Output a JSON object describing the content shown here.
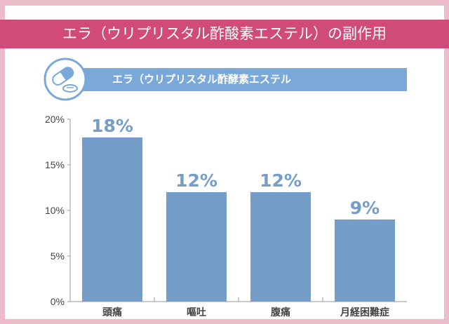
{
  "title": "エラ（ウリプリスタル酢酸素エステル）の副作用",
  "subtitle": "エラ（ウリプリスタル酢酵素エステル",
  "colors": {
    "title_bg": "#d04b78",
    "band": "#7aa8d8",
    "bar": "#769dc9",
    "border": "#ecbccb"
  },
  "chart_data": {
    "type": "bar",
    "categories": [
      "頭痛",
      "嘔吐",
      "腹痛",
      "月経困難症"
    ],
    "values": [
      18,
      12,
      12,
      9
    ],
    "data_labels": [
      "18%",
      "12%",
      "12%",
      "9%"
    ],
    "yticks": [
      "0%",
      "5%",
      "10%",
      "15%",
      "20%"
    ],
    "ylim": [
      0,
      20
    ],
    "xlabel": "",
    "ylabel": ""
  }
}
